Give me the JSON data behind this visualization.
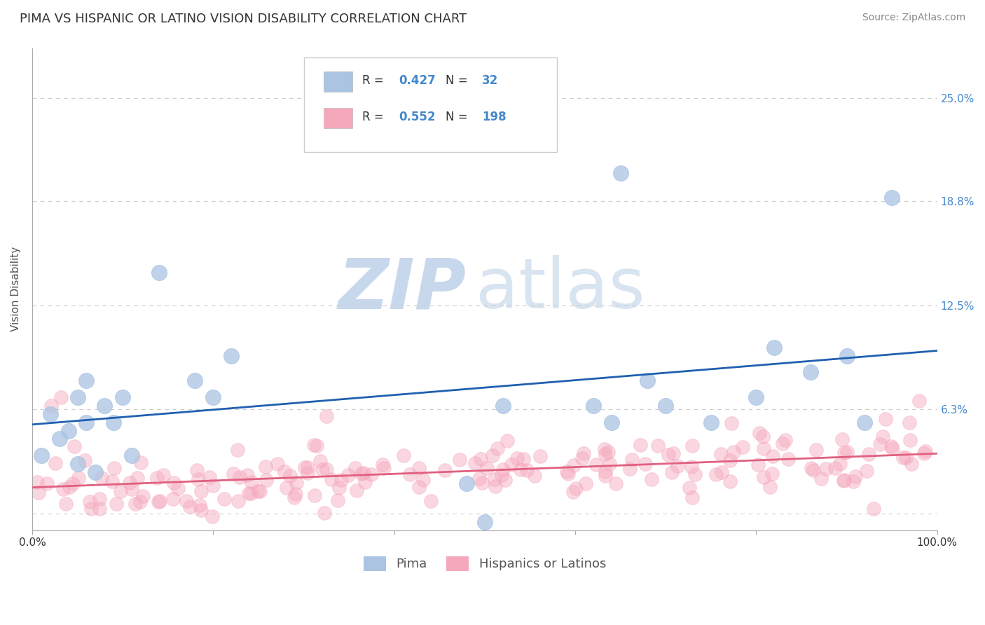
{
  "title": "PIMA VS HISPANIC OR LATINO VISION DISABILITY CORRELATION CHART",
  "source": "Source: ZipAtlas.com",
  "ylabel": "Vision Disability",
  "legend_label1": "Pima",
  "legend_label2": "Hispanics or Latinos",
  "legend_r1": "0.427",
  "legend_n1": "32",
  "legend_r2": "0.552",
  "legend_n2": "198",
  "color_pima": "#aac4e2",
  "color_hispanic": "#f5a8bc",
  "line_color_pima": "#2060b0",
  "line_color_hispanic": "#e06080",
  "background_color": "#ffffff",
  "grid_color": "#cccccc",
  "xlim": [
    0.0,
    1.0
  ],
  "ylim": [
    -0.01,
    0.28
  ],
  "yticks": [
    0.0,
    0.063,
    0.125,
    0.188,
    0.25
  ],
  "ytick_labels": [
    "",
    "6.3%",
    "12.5%",
    "18.8%",
    "25.0%"
  ],
  "xticks": [
    0.0,
    0.2,
    0.4,
    0.6,
    0.8,
    1.0
  ],
  "xtick_labels": [
    "0.0%",
    "",
    "",
    "",
    "",
    "100.0%"
  ],
  "title_fontsize": 13,
  "axis_label_fontsize": 11,
  "tick_fontsize": 11,
  "legend_fontsize": 13,
  "source_fontsize": 10,
  "pima_n": 32,
  "hispanic_n": 198
}
